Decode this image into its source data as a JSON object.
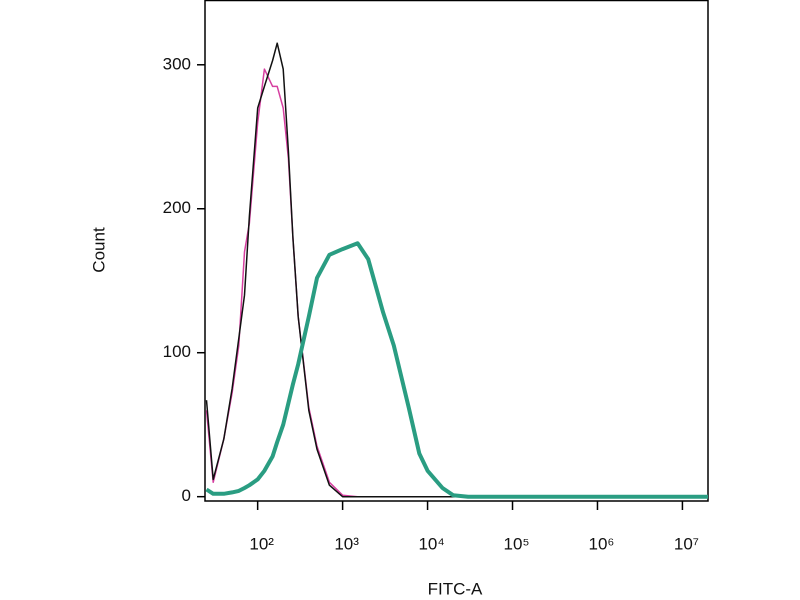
{
  "chart_data": {
    "type": "line",
    "x_label": "FITC-A",
    "y_label": "Count",
    "xscale": "log",
    "xlim": [
      24,
      20000000
    ],
    "ylim": [
      -3,
      345
    ],
    "xticks": [
      {
        "value": 100,
        "label": "10²"
      },
      {
        "value": 1000,
        "label": "10³"
      },
      {
        "value": 10000,
        "label": "10⁴"
      },
      {
        "value": 100000,
        "label": "10⁵"
      },
      {
        "value": 1000000,
        "label": "10⁶"
      },
      {
        "value": 10000000,
        "label": "10⁷"
      }
    ],
    "yticks": [
      0,
      100,
      200,
      300
    ],
    "x": [
      25,
      30,
      40,
      50,
      60,
      70,
      80,
      100,
      120,
      150,
      170,
      200,
      230,
      260,
      300,
      400,
      500,
      700,
      1000,
      1500,
      2000,
      3000,
      4000,
      6000,
      8000,
      10000,
      15000,
      20000,
      30000,
      50000,
      100000,
      1000000,
      10000000,
      20000000
    ],
    "series": [
      {
        "color": "#d63fa0",
        "width": 1.5,
        "values": [
          60,
          10,
          40,
          72,
          105,
          170,
          190,
          260,
          297,
          285,
          285,
          270,
          235,
          180,
          125,
          62,
          35,
          10,
          1,
          0,
          0,
          0,
          0,
          0,
          0,
          0,
          0,
          0,
          0,
          0,
          0,
          0,
          0,
          0
        ]
      },
      {
        "color": "#111111",
        "width": 1.5,
        "values": [
          67,
          12,
          40,
          75,
          110,
          140,
          195,
          270,
          285,
          303,
          315,
          297,
          240,
          180,
          125,
          60,
          33,
          8,
          0,
          0,
          0,
          0,
          0,
          0,
          0,
          0,
          0,
          0,
          0,
          0,
          0,
          0,
          0,
          0
        ]
      },
      {
        "color": "#2a9d82",
        "width": 4,
        "values": [
          5,
          2,
          2,
          3,
          4,
          6,
          8,
          12,
          18,
          28,
          38,
          50,
          65,
          78,
          92,
          125,
          152,
          168,
          172,
          176,
          165,
          128,
          105,
          62,
          30,
          18,
          6,
          1,
          0,
          0,
          0,
          0,
          0,
          0
        ]
      }
    ]
  }
}
